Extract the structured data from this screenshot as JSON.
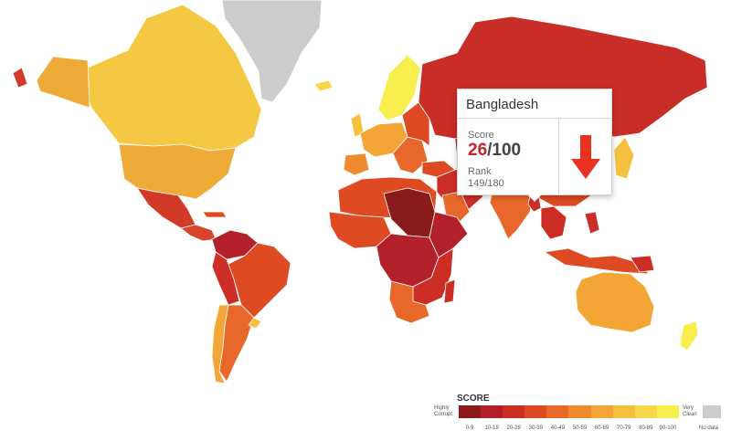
{
  "tooltip": {
    "country": "Bangladesh",
    "score_label": "Score",
    "score_value": "26",
    "score_max": "/100",
    "rank_label": "Rank",
    "rank_value": "149/180",
    "trend": "down",
    "trend_icon": "down-arrow-icon",
    "trend_color": "#e8311f"
  },
  "legend": {
    "title": "SCORE",
    "low_label": "Highly Corrupt",
    "high_label": "Very Clean",
    "no_data_label": "No data",
    "ranges": [
      "0-9",
      "10-19",
      "20-29",
      "30-39",
      "40-49",
      "50-59",
      "60-69",
      "70-79",
      "80-89",
      "90-100"
    ],
    "colors": [
      "#8b1a1a",
      "#b3202a",
      "#cc2e25",
      "#de4a22",
      "#e8672a",
      "#ef8a2f",
      "#f3a535",
      "#f5c03d",
      "#f6d747",
      "#f8ee4d"
    ],
    "no_data_color": "#cccccc"
  }
}
